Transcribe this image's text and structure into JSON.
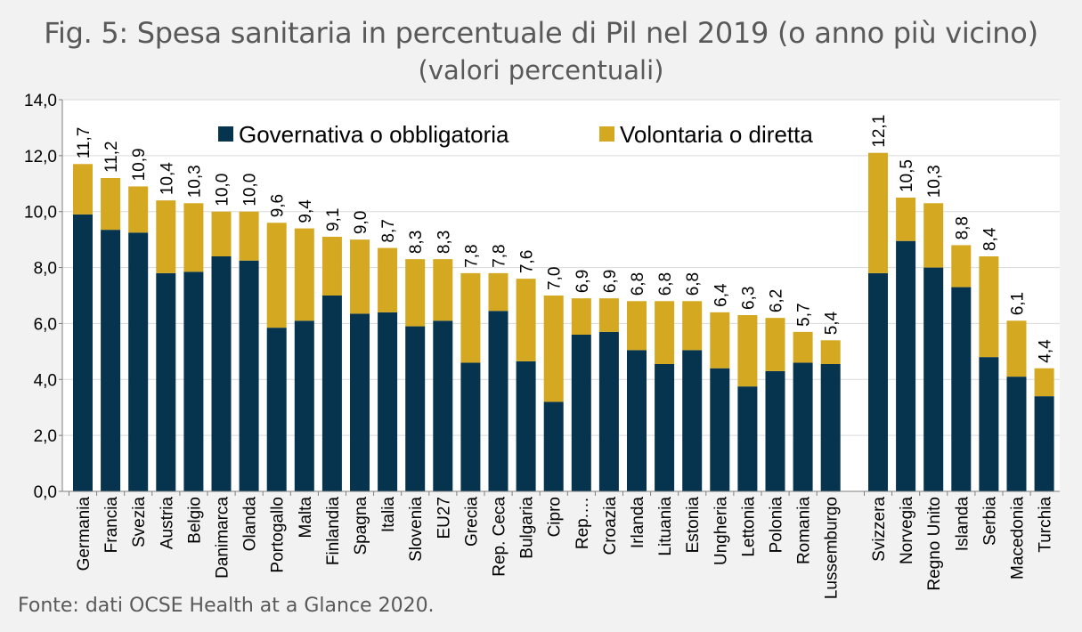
{
  "chart_data": {
    "type": "bar",
    "stacked": true,
    "title": "Fig. 5: Spesa sanitaria in percentuale di Pil nel 2019 (o anno più vicino)",
    "subtitle": "(valori percentuali)",
    "source": "Fonte: dati OCSE Health at a Glance 2020.",
    "ylim": [
      0,
      14
    ],
    "yticks": [
      "0,0",
      "2,0",
      "4,0",
      "6,0",
      "8,0",
      "10,0",
      "12,0",
      "14,0"
    ],
    "grid": true,
    "legend_position": "top",
    "colors": {
      "govern": "#06344f",
      "volont": "#d4a820",
      "grid": "#d9d9d9",
      "axis": "#7f7f7f"
    },
    "series": [
      {
        "name": "Governativa o obbligatoria",
        "key": "govern"
      },
      {
        "name": "Volontaria o diretta",
        "key": "volont"
      }
    ],
    "groups": [
      {
        "name": "ue",
        "categories": [
          "Germania",
          "Francia",
          "Svezia",
          "Austria",
          "Belgio",
          "Danimarca",
          "Olanda",
          "Portogallo",
          "Malta",
          "Finlandia",
          "Spagna",
          "Italia",
          "Slovenia",
          "EU27",
          "Grecia",
          "Rep. Ceca",
          "Bulgaria",
          "Cipro",
          "Rep.…",
          "Croazia",
          "Irlanda",
          "Lituania",
          "Estonia",
          "Ungheria",
          "Lettonia",
          "Polonia",
          "Romania",
          "Lussemburgo"
        ],
        "governativa": [
          9.9,
          9.35,
          9.25,
          7.8,
          7.85,
          8.4,
          8.25,
          5.85,
          6.1,
          7.0,
          6.35,
          6.4,
          5.9,
          6.1,
          4.6,
          6.45,
          4.65,
          3.2,
          5.6,
          5.7,
          5.05,
          4.55,
          5.05,
          4.4,
          3.75,
          4.3,
          4.6,
          4.55
        ],
        "totale": [
          11.7,
          11.2,
          10.9,
          10.4,
          10.3,
          10.0,
          10.0,
          9.6,
          9.4,
          9.1,
          9.0,
          8.7,
          8.3,
          8.3,
          7.8,
          7.8,
          7.6,
          7.0,
          6.9,
          6.9,
          6.8,
          6.8,
          6.8,
          6.4,
          6.3,
          6.2,
          5.7,
          5.4
        ],
        "labels": [
          "11,7",
          "11,2",
          "10,9",
          "10,4",
          "10,3",
          "10,0",
          "10,0",
          "9,6",
          "9,4",
          "9,1",
          "9,0",
          "8,7",
          "8,3",
          "8,3",
          "7,8",
          "7,8",
          "7,6",
          "7,0",
          "6,9",
          "6,9",
          "6,8",
          "6,8",
          "6,8",
          "6,4",
          "6,3",
          "6,2",
          "5,7",
          "5,4"
        ]
      },
      {
        "name": "extra-ue",
        "categories": [
          "Svizzera",
          "Norvegia",
          "Regno Unito",
          "Islanda",
          "Serbia",
          "Macedonia",
          "Turchia"
        ],
        "governativa": [
          7.8,
          8.95,
          8.0,
          7.3,
          4.8,
          4.1,
          3.4
        ],
        "totale": [
          12.1,
          10.5,
          10.3,
          8.8,
          8.4,
          6.1,
          4.4
        ],
        "labels": [
          "12,1",
          "10,5",
          "10,3",
          "8,8",
          "8,4",
          "6,1",
          "4,4"
        ]
      }
    ]
  }
}
